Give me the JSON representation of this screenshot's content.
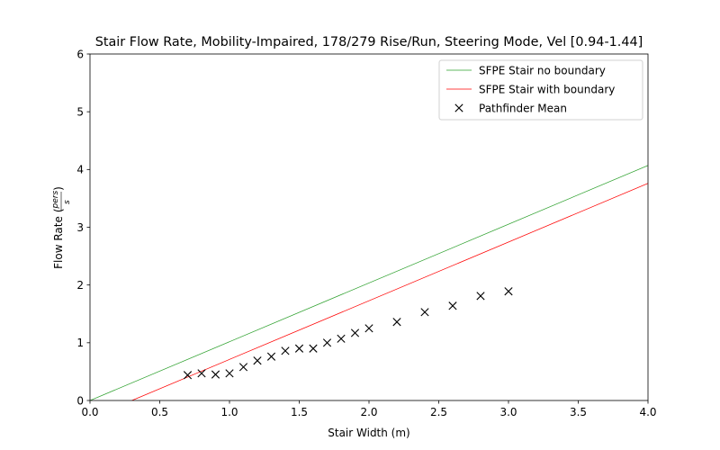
{
  "chart_data": {
    "type": "line",
    "title": "Stair Flow Rate, Mobility-Impaired, 178/279 Rise/Run, Steering Mode, Vel [0.94-1.44]",
    "xlabel": "Stair Width (m)",
    "ylabel": "Flow Rate",
    "ylabel_unit_num": "pers",
    "ylabel_unit_den": "s",
    "xlim": [
      0.0,
      4.0
    ],
    "ylim": [
      0,
      6
    ],
    "xticks": [
      "0.0",
      "0.5",
      "1.0",
      "1.5",
      "2.0",
      "2.5",
      "3.0",
      "3.5",
      "4.0"
    ],
    "yticks": [
      "0",
      "1",
      "2",
      "3",
      "4",
      "5",
      "6"
    ],
    "legend_position": "top-right",
    "series": [
      {
        "name": "SFPE Stair no boundary",
        "kind": "line",
        "color": "#2ca02c",
        "x": [
          0.0,
          4.0
        ],
        "y": [
          0.0,
          4.07
        ]
      },
      {
        "name": "SFPE Stair with boundary",
        "kind": "line",
        "color": "#ff0000",
        "x": [
          0.3,
          4.0
        ],
        "y": [
          0.0,
          3.76
        ]
      },
      {
        "name": "Pathfinder Mean",
        "kind": "scatter",
        "marker": "x",
        "color": "#000000",
        "x": [
          0.7,
          0.8,
          0.9,
          1.0,
          1.1,
          1.2,
          1.3,
          1.4,
          1.5,
          1.6,
          1.7,
          1.8,
          1.9,
          2.0,
          2.2,
          2.4,
          2.6,
          2.8,
          3.0
        ],
        "y": [
          0.44,
          0.47,
          0.45,
          0.47,
          0.58,
          0.69,
          0.76,
          0.86,
          0.9,
          0.9,
          1.0,
          1.07,
          1.17,
          1.25,
          1.36,
          1.53,
          1.64,
          1.81,
          1.89
        ]
      }
    ]
  }
}
